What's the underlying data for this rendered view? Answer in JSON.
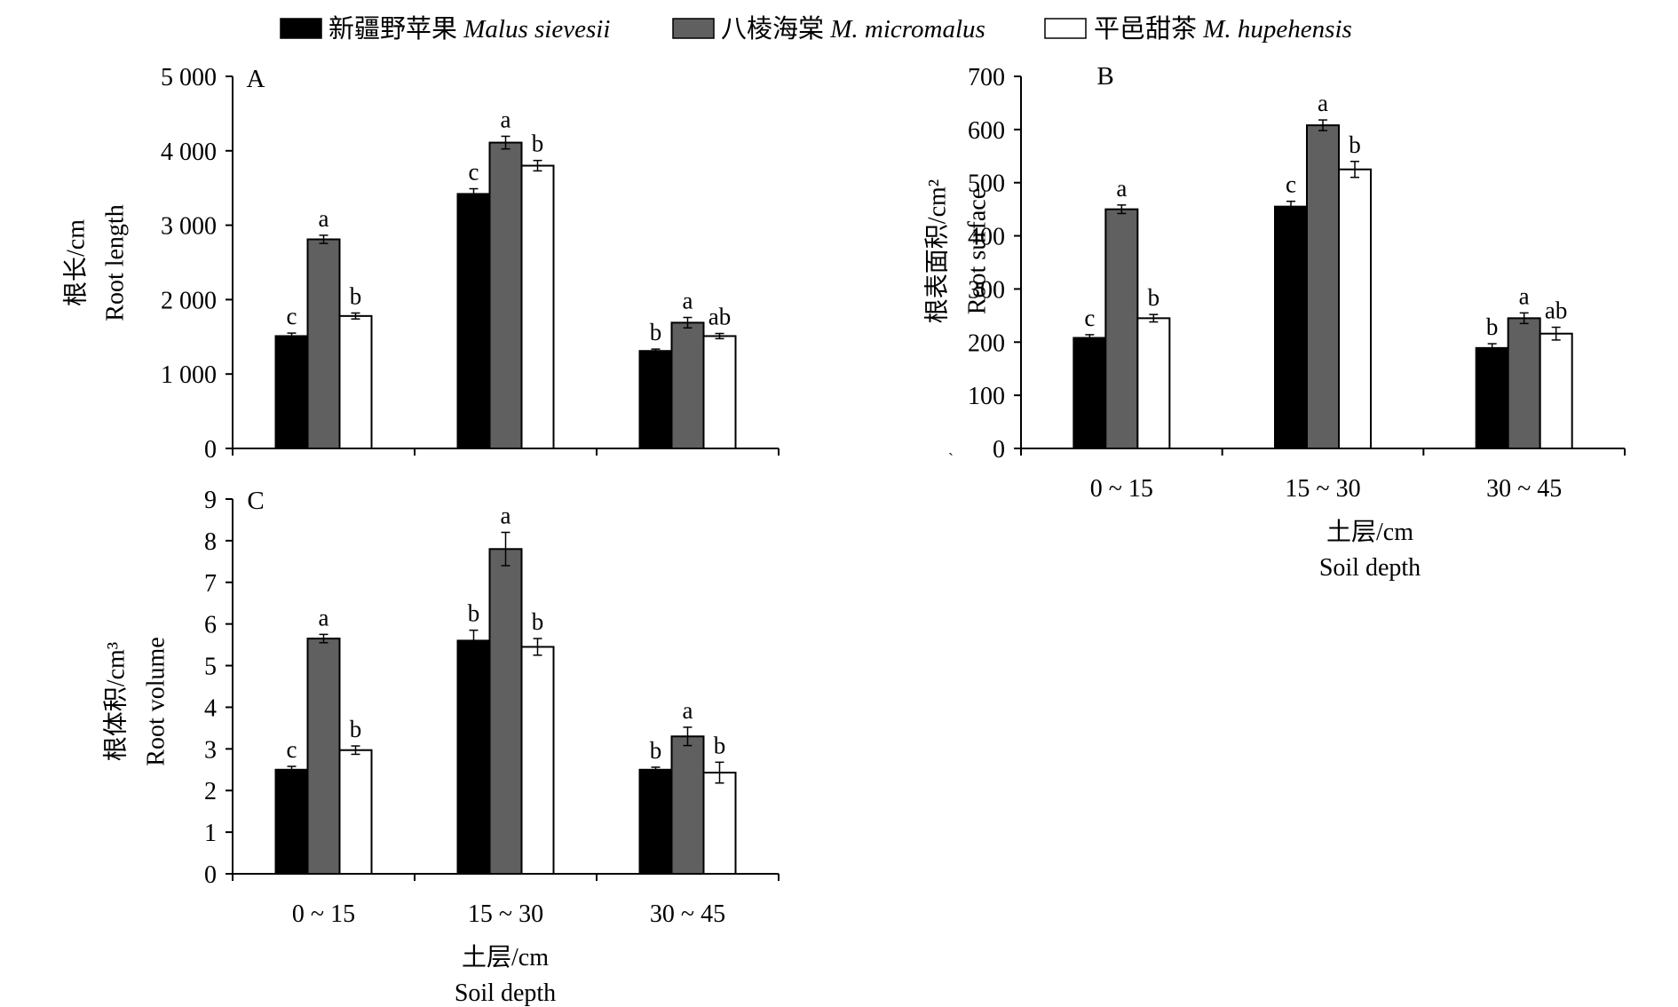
{
  "legend": [
    {
      "cn": "新疆野苹果",
      "latin": "Malus sievesii",
      "color": "#000000"
    },
    {
      "cn": "八棱海棠",
      "latin": "M. micromalus",
      "color": "#606060"
    },
    {
      "cn": "平邑甜茶",
      "latin": "M. hupehensis",
      "color": "#ffffff"
    }
  ],
  "stray_mark": "ˎ",
  "chart_data": [
    {
      "type": "bar",
      "panel_letter": "A",
      "categories": [
        "0 ~ 15",
        "15 ~ 30",
        "30 ~ 45"
      ],
      "ylabel_cn": "根长/cm",
      "ylabel_en": "Root length",
      "xlabel_cn": "",
      "xlabel_en": "",
      "ylim": [
        0,
        5000
      ],
      "yticks": [
        0,
        1000,
        2000,
        3000,
        4000,
        5000
      ],
      "ytick_labels": [
        "0",
        "1 000",
        "2 000",
        "3 000",
        "4 000",
        "5 000"
      ],
      "show_category_labels": false,
      "series": [
        {
          "name": "新疆野苹果 Malus sievesii",
          "values": [
            1510,
            3420,
            1310
          ],
          "errors": [
            40,
            70,
            25
          ],
          "letters": [
            "c",
            "c",
            "b"
          ]
        },
        {
          "name": "八棱海棠 M. micromalus",
          "values": [
            2810,
            4110,
            1690
          ],
          "errors": [
            55,
            85,
            70
          ],
          "letters": [
            "a",
            "a",
            "a"
          ]
        },
        {
          "name": "平邑甜茶 M. hupehensis",
          "values": [
            1780,
            3800,
            1510
          ],
          "errors": [
            40,
            70,
            35
          ],
          "letters": [
            "b",
            "b",
            "ab"
          ]
        }
      ]
    },
    {
      "type": "bar",
      "panel_letter": "B",
      "categories": [
        "0 ~ 15",
        "15 ~ 30",
        "30 ~ 45"
      ],
      "ylabel_cn": "根表面积/cm²",
      "ylabel_en": "Root surface",
      "xlabel_cn": "土层/cm",
      "xlabel_en": "Soil depth",
      "ylim": [
        0,
        700
      ],
      "yticks": [
        0,
        100,
        200,
        300,
        400,
        500,
        600,
        700
      ],
      "ytick_labels": [
        "0",
        "100",
        "200",
        "300",
        "400",
        "500",
        "600",
        "700"
      ],
      "show_category_labels": true,
      "series": [
        {
          "name": "新疆野苹果 Malus sievesii",
          "values": [
            208,
            455,
            189
          ],
          "errors": [
            6,
            10,
            8
          ],
          "letters": [
            "c",
            "c",
            "b"
          ]
        },
        {
          "name": "八棱海棠 M. micromalus",
          "values": [
            450,
            608,
            245
          ],
          "errors": [
            8,
            10,
            10
          ],
          "letters": [
            "a",
            "a",
            "a"
          ]
        },
        {
          "name": "平邑甜茶 M. hupehensis",
          "values": [
            245,
            525,
            216
          ],
          "errors": [
            7,
            15,
            12
          ],
          "letters": [
            "b",
            "b",
            "ab"
          ]
        }
      ]
    },
    {
      "type": "bar",
      "panel_letter": "C",
      "categories": [
        "0 ~ 15",
        "15 ~ 30",
        "30 ~ 45"
      ],
      "ylabel_cn": "根体积/cm³",
      "ylabel_en": "Root volume",
      "xlabel_cn": "土层/cm",
      "xlabel_en": "Soil depth",
      "ylim": [
        0,
        9
      ],
      "yticks": [
        0,
        1,
        2,
        3,
        4,
        5,
        6,
        7,
        8,
        9
      ],
      "ytick_labels": [
        "0",
        "1",
        "2",
        "3",
        "4",
        "5",
        "6",
        "7",
        "8",
        "9"
      ],
      "show_category_labels": true,
      "series": [
        {
          "name": "新疆野苹果 Malus sievesii",
          "values": [
            2.5,
            5.6,
            2.5
          ],
          "errors": [
            0.08,
            0.25,
            0.06
          ],
          "letters": [
            "c",
            "b",
            "b"
          ]
        },
        {
          "name": "八棱海棠 M. micromalus",
          "values": [
            5.65,
            7.8,
            3.3
          ],
          "errors": [
            0.1,
            0.4,
            0.22
          ],
          "letters": [
            "a",
            "a",
            "a"
          ]
        },
        {
          "name": "平邑甜茶 M. hupehensis",
          "values": [
            2.97,
            5.45,
            2.43
          ],
          "errors": [
            0.1,
            0.2,
            0.25
          ],
          "letters": [
            "b",
            "b",
            "b"
          ]
        }
      ]
    }
  ]
}
